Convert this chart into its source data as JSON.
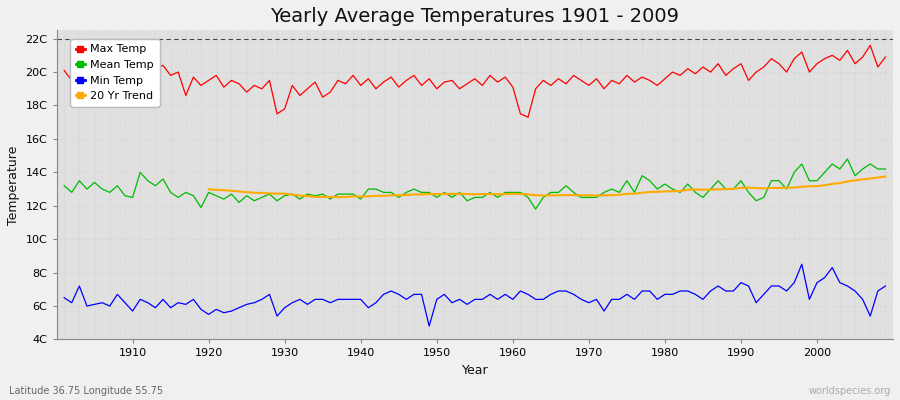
{
  "title": "Yearly Average Temperatures 1901 - 2009",
  "xlabel": "Year",
  "ylabel": "Temperature",
  "latitude": "Latitude 36.75 Longitude 55.75",
  "watermark": "worldspecies.org",
  "years": [
    1901,
    1902,
    1903,
    1904,
    1905,
    1906,
    1907,
    1908,
    1909,
    1910,
    1911,
    1912,
    1913,
    1914,
    1915,
    1916,
    1917,
    1918,
    1919,
    1920,
    1921,
    1922,
    1923,
    1924,
    1925,
    1926,
    1927,
    1928,
    1929,
    1930,
    1931,
    1932,
    1933,
    1934,
    1935,
    1936,
    1937,
    1938,
    1939,
    1940,
    1941,
    1942,
    1943,
    1944,
    1945,
    1946,
    1947,
    1948,
    1949,
    1950,
    1951,
    1952,
    1953,
    1954,
    1955,
    1956,
    1957,
    1958,
    1959,
    1960,
    1961,
    1962,
    1963,
    1964,
    1965,
    1966,
    1967,
    1968,
    1969,
    1970,
    1971,
    1972,
    1973,
    1974,
    1975,
    1976,
    1977,
    1978,
    1979,
    1980,
    1981,
    1982,
    1983,
    1984,
    1985,
    1986,
    1987,
    1988,
    1989,
    1990,
    1991,
    1992,
    1993,
    1994,
    1995,
    1996,
    1997,
    1998,
    1999,
    2000,
    2001,
    2002,
    2003,
    2004,
    2005,
    2006,
    2007,
    2008,
    2009
  ],
  "max_temp": [
    20.1,
    19.5,
    19.8,
    20.3,
    20.8,
    20.5,
    20.1,
    19.6,
    19.9,
    20.5,
    19.2,
    20.6,
    20.2,
    20.4,
    19.8,
    20.0,
    18.6,
    19.7,
    19.2,
    19.5,
    19.8,
    19.1,
    19.5,
    19.3,
    18.8,
    19.2,
    19.0,
    19.5,
    17.5,
    17.8,
    19.2,
    18.6,
    19.0,
    19.4,
    18.5,
    18.8,
    19.5,
    19.3,
    19.8,
    19.2,
    19.6,
    19.0,
    19.4,
    19.7,
    19.1,
    19.5,
    19.8,
    19.2,
    19.6,
    19.0,
    19.4,
    19.5,
    19.0,
    19.3,
    19.6,
    19.2,
    19.8,
    19.4,
    19.7,
    19.1,
    17.5,
    17.3,
    19.0,
    19.5,
    19.2,
    19.6,
    19.3,
    19.8,
    19.5,
    19.2,
    19.6,
    19.0,
    19.5,
    19.3,
    19.8,
    19.4,
    19.7,
    19.5,
    19.2,
    19.6,
    20.0,
    19.8,
    20.2,
    19.9,
    20.3,
    20.0,
    20.5,
    19.8,
    20.2,
    20.5,
    19.5,
    20.0,
    20.3,
    20.8,
    20.5,
    20.0,
    20.8,
    21.2,
    20.0,
    20.5,
    20.8,
    21.0,
    20.7,
    21.3,
    20.5,
    20.9,
    21.6,
    20.3,
    20.9
  ],
  "mean_temp": [
    13.2,
    12.8,
    13.5,
    13.0,
    13.4,
    13.0,
    12.8,
    13.2,
    12.6,
    12.5,
    14.0,
    13.5,
    13.2,
    13.6,
    12.8,
    12.5,
    12.8,
    12.6,
    11.9,
    12.8,
    12.6,
    12.4,
    12.7,
    12.2,
    12.6,
    12.3,
    12.5,
    12.7,
    12.3,
    12.6,
    12.7,
    12.4,
    12.7,
    12.6,
    12.7,
    12.4,
    12.7,
    12.7,
    12.7,
    12.4,
    13.0,
    13.0,
    12.8,
    12.8,
    12.5,
    12.8,
    13.0,
    12.8,
    12.8,
    12.5,
    12.8,
    12.5,
    12.8,
    12.3,
    12.5,
    12.5,
    12.8,
    12.5,
    12.8,
    12.8,
    12.8,
    12.5,
    11.8,
    12.5,
    12.8,
    12.8,
    13.2,
    12.8,
    12.5,
    12.5,
    12.5,
    12.8,
    13.0,
    12.8,
    13.5,
    12.8,
    13.8,
    13.5,
    13.0,
    13.3,
    13.0,
    12.8,
    13.3,
    12.8,
    12.5,
    13.0,
    13.5,
    13.0,
    13.0,
    13.5,
    12.8,
    12.3,
    12.5,
    13.5,
    13.5,
    13.0,
    14.0,
    14.5,
    13.5,
    13.5,
    14.0,
    14.5,
    14.2,
    14.8,
    13.8,
    14.2,
    14.5,
    14.2,
    14.2
  ],
  "min_temp": [
    6.5,
    6.2,
    7.2,
    6.0,
    6.1,
    6.2,
    6.0,
    6.7,
    6.2,
    5.7,
    6.4,
    6.2,
    5.9,
    6.4,
    5.9,
    6.2,
    6.1,
    6.4,
    5.8,
    5.5,
    5.8,
    5.6,
    5.7,
    5.9,
    6.1,
    6.2,
    6.4,
    6.7,
    5.4,
    5.9,
    6.2,
    6.4,
    6.1,
    6.4,
    6.4,
    6.2,
    6.4,
    6.4,
    6.4,
    6.4,
    5.9,
    6.2,
    6.7,
    6.9,
    6.7,
    6.4,
    6.7,
    6.7,
    4.8,
    6.4,
    6.7,
    6.2,
    6.4,
    6.1,
    6.4,
    6.4,
    6.7,
    6.4,
    6.7,
    6.4,
    6.9,
    6.7,
    6.4,
    6.4,
    6.7,
    6.9,
    6.9,
    6.7,
    6.4,
    6.2,
    6.4,
    5.7,
    6.4,
    6.4,
    6.7,
    6.4,
    6.9,
    6.9,
    6.4,
    6.7,
    6.7,
    6.9,
    6.9,
    6.7,
    6.4,
    6.9,
    7.2,
    6.9,
    6.9,
    7.4,
    7.2,
    6.2,
    6.7,
    7.2,
    7.2,
    6.9,
    7.4,
    8.5,
    6.4,
    7.4,
    7.7,
    8.3,
    7.4,
    7.2,
    6.9,
    6.4,
    5.4,
    6.9,
    7.2
  ],
  "bg_color": "#f0f0f0",
  "plot_bg_color": "#e0e0e0",
  "max_color": "#ff0000",
  "mean_color": "#00bb00",
  "min_color": "#0000ff",
  "trend_color": "#ffaa00",
  "grid_color": "#cccccc",
  "ylim": [
    4,
    22.5
  ],
  "yticks": [
    4,
    6,
    8,
    10,
    12,
    14,
    16,
    18,
    20,
    22
  ],
  "ytick_labels": [
    "4C",
    "6C",
    "8C",
    "10C",
    "12C",
    "14C",
    "16C",
    "18C",
    "20C",
    "22C"
  ],
  "dashed_line_y": 22,
  "title_fontsize": 14,
  "axis_fontsize": 9,
  "tick_fontsize": 8,
  "legend_fontsize": 8
}
